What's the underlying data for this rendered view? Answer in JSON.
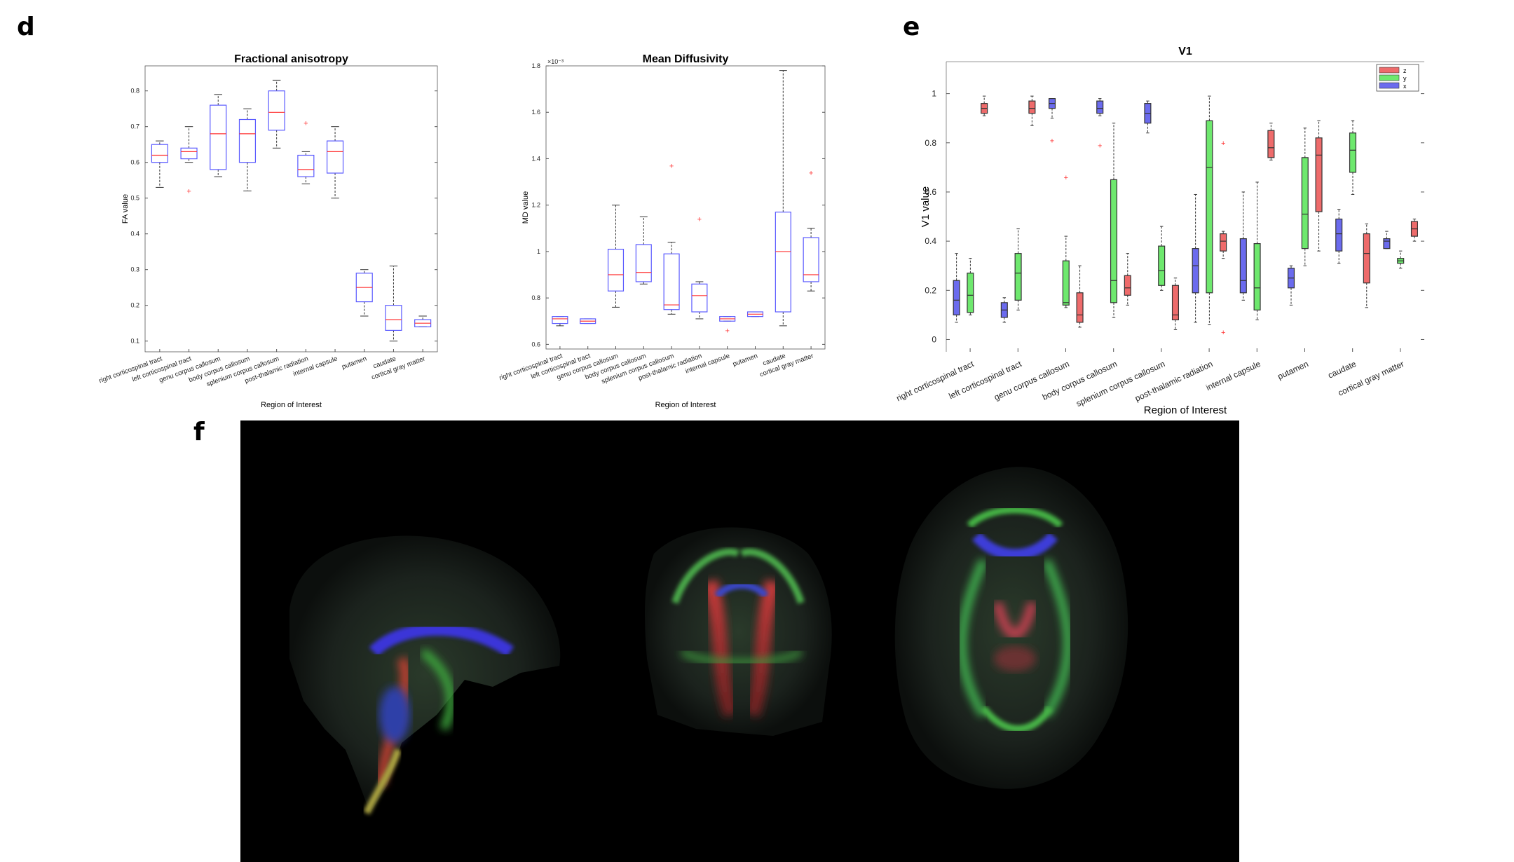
{
  "panels": {
    "d": "d",
    "e": "e",
    "f": "f"
  },
  "colors": {
    "box": "#5a5aff",
    "median": "#ff3333",
    "outlier": "#ff3333",
    "whisker": "#333333",
    "z": "#ee6b6b",
    "y": "#6ee86e",
    "x": "#6b6bee"
  },
  "chart_data": [
    {
      "type": "box",
      "title": "Fractional anisotropy",
      "xlabel": "Region of Interest",
      "ylabel": "FA value",
      "ylim": [
        0.07,
        0.87
      ],
      "yticks": [
        0.1,
        0.2,
        0.3,
        0.4,
        0.5,
        0.6,
        0.7,
        0.8
      ],
      "categories": [
        "right corticospinal tract",
        "left corticospinal tract",
        "genu corpus callosum",
        "body corpus callosum",
        "splenium corpus callosum",
        "post-thalamic radiation",
        "internal capsule",
        "putamen",
        "caudate",
        "cortical gray matter"
      ],
      "boxes": [
        {
          "min": 0.53,
          "q1": 0.6,
          "median": 0.62,
          "q3": 0.65,
          "max": 0.66,
          "outliers": []
        },
        {
          "min": 0.6,
          "q1": 0.61,
          "median": 0.63,
          "q3": 0.64,
          "max": 0.7,
          "outliers": [
            0.52
          ]
        },
        {
          "min": 0.56,
          "q1": 0.58,
          "median": 0.68,
          "q3": 0.76,
          "max": 0.79,
          "outliers": []
        },
        {
          "min": 0.52,
          "q1": 0.6,
          "median": 0.68,
          "q3": 0.72,
          "max": 0.75,
          "outliers": []
        },
        {
          "min": 0.64,
          "q1": 0.69,
          "median": 0.74,
          "q3": 0.8,
          "max": 0.83,
          "outliers": []
        },
        {
          "min": 0.54,
          "q1": 0.56,
          "median": 0.58,
          "q3": 0.62,
          "max": 0.63,
          "outliers": [
            0.71
          ]
        },
        {
          "min": 0.5,
          "q1": 0.57,
          "median": 0.63,
          "q3": 0.66,
          "max": 0.7,
          "outliers": []
        },
        {
          "min": 0.17,
          "q1": 0.21,
          "median": 0.25,
          "q3": 0.29,
          "max": 0.3,
          "outliers": []
        },
        {
          "min": 0.1,
          "q1": 0.13,
          "median": 0.16,
          "q3": 0.2,
          "max": 0.31,
          "outliers": []
        },
        {
          "min": 0.14,
          "q1": 0.14,
          "median": 0.15,
          "q3": 0.16,
          "max": 0.17,
          "outliers": []
        }
      ]
    },
    {
      "type": "box",
      "title": "Mean Diffusivity",
      "xlabel": "Region of Interest",
      "ylabel": "MD value",
      "exponent": "×10⁻³",
      "ylim": [
        0.58,
        1.8
      ],
      "yticks": [
        0.6,
        0.8,
        1,
        1.2,
        1.4,
        1.6,
        1.8
      ],
      "categories": [
        "right corticospinal tract",
        "left corticospinal tract",
        "genu corpus callosum",
        "body corpus callosum",
        "splenium corpus callosum",
        "post-thalamic radiation",
        "internal capsule",
        "putamen",
        "caudate",
        "cortical gray matter"
      ],
      "boxes": [
        {
          "min": 0.68,
          "q1": 0.69,
          "median": 0.71,
          "q3": 0.72,
          "max": 0.72,
          "outliers": []
        },
        {
          "min": 0.69,
          "q1": 0.69,
          "median": 0.7,
          "q3": 0.71,
          "max": 0.71,
          "outliers": []
        },
        {
          "min": 0.76,
          "q1": 0.83,
          "median": 0.9,
          "q3": 1.01,
          "max": 1.2,
          "outliers": []
        },
        {
          "min": 0.86,
          "q1": 0.87,
          "median": 0.91,
          "q3": 1.03,
          "max": 1.15,
          "outliers": []
        },
        {
          "min": 0.73,
          "q1": 0.75,
          "median": 0.77,
          "q3": 0.99,
          "max": 1.04,
          "outliers": [
            1.37
          ]
        },
        {
          "min": 0.71,
          "q1": 0.74,
          "median": 0.81,
          "q3": 0.86,
          "max": 0.87,
          "outliers": [
            1.14
          ]
        },
        {
          "min": 0.7,
          "q1": 0.7,
          "median": 0.71,
          "q3": 0.72,
          "max": 0.72,
          "outliers": [
            0.66
          ]
        },
        {
          "min": 0.72,
          "q1": 0.72,
          "median": 0.73,
          "q3": 0.74,
          "max": 0.74,
          "outliers": []
        },
        {
          "min": 0.68,
          "q1": 0.74,
          "median": 1.0,
          "q3": 1.17,
          "max": 1.78,
          "outliers": []
        },
        {
          "min": 0.83,
          "q1": 0.87,
          "median": 0.9,
          "q3": 1.06,
          "max": 1.1,
          "outliers": [
            1.34
          ]
        }
      ]
    },
    {
      "type": "box",
      "title": "V1",
      "xlabel": "Region of Interest",
      "ylabel": "V1 value",
      "ylim": [
        -0.05,
        1.13
      ],
      "yticks": [
        0,
        0.2,
        0.4,
        0.6,
        0.8,
        1
      ],
      "legend": [
        "z",
        "y",
        "x"
      ],
      "categories": [
        "right corticospinal tract",
        "left corticospinal tract",
        "genu corpus callosum",
        "body corpus callosum",
        "splenium corpus callosum",
        "post-thalamic radiation",
        "internal capsule",
        "putamen",
        "caudate",
        "cortical gray matter"
      ],
      "groups": [
        {
          "x": {
            "min": 0.07,
            "q1": 0.1,
            "median": 0.16,
            "q3": 0.24,
            "max": 0.35,
            "outliers": []
          },
          "y": {
            "min": 0.1,
            "q1": 0.11,
            "median": 0.18,
            "q3": 0.27,
            "max": 0.33,
            "outliers": []
          },
          "z": {
            "min": 0.91,
            "q1": 0.92,
            "median": 0.94,
            "q3": 0.96,
            "max": 0.99,
            "outliers": []
          }
        },
        {
          "x": {
            "min": 0.07,
            "q1": 0.09,
            "median": 0.12,
            "q3": 0.15,
            "max": 0.17,
            "outliers": []
          },
          "y": {
            "min": 0.12,
            "q1": 0.16,
            "median": 0.27,
            "q3": 0.35,
            "max": 0.45,
            "outliers": []
          },
          "z": {
            "min": 0.87,
            "q1": 0.92,
            "median": 0.94,
            "q3": 0.97,
            "max": 0.99,
            "outliers": []
          }
        },
        {
          "x": {
            "min": 0.9,
            "q1": 0.94,
            "median": 0.96,
            "q3": 0.98,
            "max": 0.98,
            "outliers": [
              0.81
            ]
          },
          "y": {
            "min": 0.13,
            "q1": 0.14,
            "median": 0.15,
            "q3": 0.32,
            "max": 0.42,
            "outliers": [
              0.66
            ]
          },
          "z": {
            "min": 0.05,
            "q1": 0.07,
            "median": 0.1,
            "q3": 0.19,
            "max": 0.3,
            "outliers": []
          }
        },
        {
          "x": {
            "min": 0.91,
            "q1": 0.92,
            "median": 0.94,
            "q3": 0.97,
            "max": 0.98,
            "outliers": [
              0.79
            ]
          },
          "y": {
            "min": 0.09,
            "q1": 0.15,
            "median": 0.24,
            "q3": 0.65,
            "max": 0.88,
            "outliers": []
          },
          "z": {
            "min": 0.14,
            "q1": 0.18,
            "median": 0.21,
            "q3": 0.26,
            "max": 0.35,
            "outliers": []
          }
        },
        {
          "x": {
            "min": 0.84,
            "q1": 0.88,
            "median": 0.92,
            "q3": 0.96,
            "max": 0.97,
            "outliers": []
          },
          "y": {
            "min": 0.2,
            "q1": 0.22,
            "median": 0.28,
            "q3": 0.38,
            "max": 0.46,
            "outliers": []
          },
          "z": {
            "min": 0.04,
            "q1": 0.08,
            "median": 0.1,
            "q3": 0.22,
            "max": 0.25,
            "outliers": []
          }
        },
        {
          "x": {
            "min": 0.07,
            "q1": 0.19,
            "median": 0.3,
            "q3": 0.37,
            "max": 0.59,
            "outliers": []
          },
          "y": {
            "min": 0.06,
            "q1": 0.19,
            "median": 0.7,
            "q3": 0.89,
            "max": 0.99,
            "outliers": []
          },
          "z": {
            "min": 0.33,
            "q1": 0.36,
            "median": 0.4,
            "q3": 0.43,
            "max": 0.44,
            "outliers": [
              0.8,
              0.03
            ]
          }
        },
        {
          "x": {
            "min": 0.16,
            "q1": 0.19,
            "median": 0.24,
            "q3": 0.41,
            "max": 0.6,
            "outliers": []
          },
          "y": {
            "min": 0.08,
            "q1": 0.12,
            "median": 0.21,
            "q3": 0.39,
            "max": 0.64,
            "outliers": []
          },
          "z": {
            "min": 0.73,
            "q1": 0.74,
            "median": 0.78,
            "q3": 0.85,
            "max": 0.88,
            "outliers": []
          }
        },
        {
          "x": {
            "min": 0.14,
            "q1": 0.21,
            "median": 0.25,
            "q3": 0.29,
            "max": 0.3,
            "outliers": []
          },
          "y": {
            "min": 0.3,
            "q1": 0.37,
            "median": 0.51,
            "q3": 0.74,
            "max": 0.86,
            "outliers": []
          },
          "z": {
            "min": 0.36,
            "q1": 0.52,
            "median": 0.75,
            "q3": 0.82,
            "max": 0.89,
            "outliers": []
          }
        },
        {
          "x": {
            "min": 0.31,
            "q1": 0.36,
            "median": 0.43,
            "q3": 0.49,
            "max": 0.53,
            "outliers": []
          },
          "y": {
            "min": 0.59,
            "q1": 0.68,
            "median": 0.77,
            "q3": 0.84,
            "max": 0.89,
            "outliers": []
          },
          "z": {
            "min": 0.13,
            "q1": 0.23,
            "median": 0.35,
            "q3": 0.43,
            "max": 0.47,
            "outliers": []
          }
        },
        {
          "x": {
            "min": 0.37,
            "q1": 0.37,
            "median": 0.4,
            "q3": 0.41,
            "max": 0.44,
            "outliers": []
          },
          "y": {
            "min": 0.29,
            "q1": 0.31,
            "median": 0.32,
            "q3": 0.33,
            "max": 0.36,
            "outliers": []
          },
          "z": {
            "min": 0.4,
            "q1": 0.42,
            "median": 0.45,
            "q3": 0.48,
            "max": 0.49,
            "outliers": []
          }
        }
      ]
    }
  ]
}
